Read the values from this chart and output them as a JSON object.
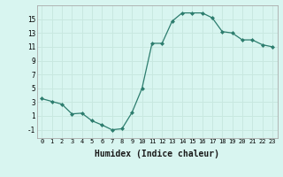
{
  "x": [
    0,
    1,
    2,
    3,
    4,
    5,
    6,
    7,
    8,
    9,
    10,
    11,
    12,
    13,
    14,
    15,
    16,
    17,
    18,
    19,
    20,
    21,
    22,
    23
  ],
  "y": [
    3.5,
    3.1,
    2.7,
    1.3,
    1.4,
    0.3,
    -0.3,
    -1.0,
    -0.85,
    1.5,
    5.0,
    11.5,
    11.5,
    14.7,
    15.9,
    15.9,
    15.9,
    15.2,
    13.2,
    13.0,
    12.0,
    12.0,
    11.3,
    11.0
  ],
  "line_color": "#2d7d6e",
  "marker": "D",
  "marker_size": 2.0,
  "bg_color": "#d8f5f0",
  "grid_color": "#c8e8e0",
  "xlabel": "Humidex (Indice chaleur)",
  "xlabel_fontsize": 7,
  "yticks": [
    -1,
    1,
    3,
    5,
    7,
    9,
    11,
    13,
    15
  ],
  "ylim": [
    -2.2,
    17
  ],
  "xlim": [
    -0.5,
    23.5
  ]
}
